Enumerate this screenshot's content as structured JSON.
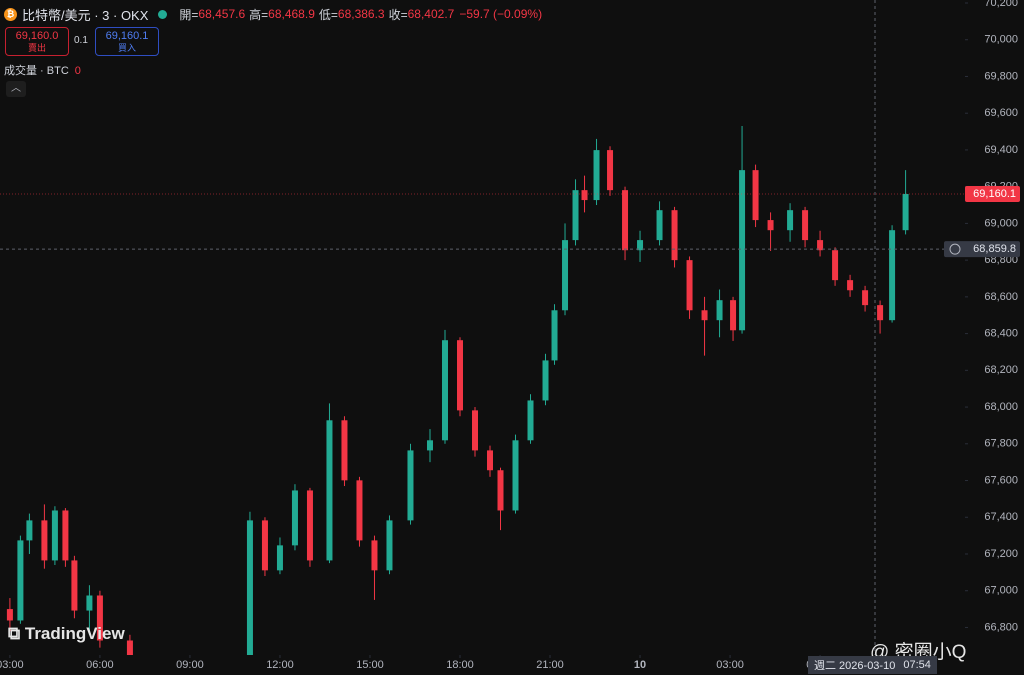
{
  "header": {
    "symbol": "比特幣/美元 · 3 · OKX",
    "ohlc": [
      {
        "label": "開=",
        "value": "68,457.6"
      },
      {
        "label": "高=",
        "value": "68,468.9"
      },
      {
        "label": "低=",
        "value": "68,386.3"
      },
      {
        "label": "收=",
        "value": "68,402.7"
      }
    ],
    "change": "−59.7 (−0.09%)"
  },
  "trade": {
    "sell": {
      "price": "69,160.0",
      "label": "賣出"
    },
    "quantity": "0.1",
    "buy": {
      "price": "69,160.1",
      "label": "買入"
    }
  },
  "volume": {
    "label": "成交量 · BTC",
    "value": "0"
  },
  "watermark": "TradingView",
  "credit": "@ 密圈小Q",
  "chart_data": {
    "type": "candlestick",
    "x": [
      3.0,
      3.35,
      3.65,
      4.15,
      4.5,
      4.85,
      5.15,
      5.65,
      6.0,
      7.0,
      8.5,
      10.0,
      11.0,
      11.5,
      12.0,
      12.5,
      13.0,
      13.65,
      14.15,
      14.65,
      15.15,
      15.65,
      16.35,
      17.0,
      17.5,
      18.0,
      18.5,
      19.0,
      19.35,
      19.85,
      20.35,
      20.85,
      21.15,
      21.5,
      21.85,
      22.15,
      22.55,
      23.0,
      23.5,
      24.0,
      24.65,
      25.15,
      25.65,
      26.15,
      26.65,
      27.1,
      27.4,
      27.85,
      28.35,
      29.0,
      29.5,
      30.0,
      30.5,
      31.0,
      31.5,
      32.0,
      32.4,
      32.85
    ],
    "open": [
      66900,
      66838,
      67274,
      67383,
      67165,
      67437,
      67165,
      66892,
      66974,
      66729,
      66500,
      66450,
      66600,
      67383,
      67111,
      67247,
      67546,
      67165,
      67928,
      67601,
      67274,
      67111,
      67383,
      67764,
      67819,
      68364,
      67982,
      67764,
      67656,
      67437,
      67819,
      68036,
      68254,
      68527,
      68909,
      69181,
      69127,
      69399,
      69181,
      68854,
      68909,
      69072,
      68800,
      68527,
      68473,
      68582,
      68418,
      69290,
      69018,
      68963,
      69072,
      68909,
      68854,
      68691,
      68636,
      68555,
      68473,
      68963
    ],
    "high": [
      66960,
      67300,
      67420,
      67470,
      67460,
      67450,
      67190,
      67030,
      67000,
      66760,
      66560,
      66640,
      67430,
      67400,
      67290,
      67580,
      67560,
      68020,
      67950,
      67620,
      67300,
      67410,
      67800,
      67880,
      68420,
      68380,
      68000,
      67790,
      67670,
      67850,
      68070,
      68290,
      68560,
      69000,
      69240,
      69260,
      69460,
      69420,
      69200,
      68960,
      69120,
      69090,
      68820,
      68600,
      68640,
      68600,
      69530,
      69320,
      69060,
      69110,
      69090,
      68960,
      68870,
      68720,
      68660,
      68580,
      68990,
      69290
    ],
    "low": [
      66780,
      66820,
      67200,
      67120,
      67140,
      67130,
      66850,
      66760,
      66690,
      66450,
      66400,
      66400,
      66580,
      67080,
      67090,
      67220,
      67130,
      67150,
      67570,
      67240,
      66950,
      67090,
      67360,
      67700,
      67800,
      67950,
      67730,
      67620,
      67330,
      67420,
      67800,
      68010,
      68230,
      68500,
      68880,
      69060,
      69100,
      69150,
      68800,
      68790,
      68880,
      68760,
      68480,
      68280,
      68380,
      68360,
      68400,
      68980,
      68850,
      68900,
      68870,
      68820,
      68660,
      68600,
      68520,
      68400,
      68460,
      68940
    ],
    "close": [
      66838,
      67274,
      67383,
      67165,
      67437,
      67165,
      66892,
      66974,
      66729,
      66500,
      66450,
      66600,
      67383,
      67111,
      67247,
      67546,
      67165,
      67928,
      67601,
      67274,
      67111,
      67383,
      67764,
      67819,
      68364,
      67982,
      67764,
      67656,
      67437,
      67819,
      68036,
      68254,
      68527,
      68909,
      69181,
      69127,
      69399,
      69181,
      68854,
      68909,
      69072,
      68800,
      68527,
      68473,
      68582,
      68418,
      69290,
      69018,
      68963,
      69072,
      68909,
      68854,
      68691,
      68636,
      68555,
      68473,
      68963,
      69160.1
    ],
    "up_color": "#22ab94",
    "down_color": "#f23645",
    "xlim": [
      2.67,
      34.83
    ],
    "ylim": [
      66650,
      70200
    ],
    "xticks": [
      {
        "value": 3,
        "label": "03:00"
      },
      {
        "value": 6,
        "label": "06:00"
      },
      {
        "value": 9,
        "label": "09:00"
      },
      {
        "value": 12,
        "label": "12:00"
      },
      {
        "value": 15,
        "label": "15:00"
      },
      {
        "value": 18,
        "label": "18:00"
      },
      {
        "value": 21,
        "label": "21:00"
      },
      {
        "value": 24,
        "label": "10"
      },
      {
        "value": 27,
        "label": "03:00"
      },
      {
        "value": 30,
        "label": "06:00"
      }
    ],
    "yticks": [
      {
        "value": 66800,
        "label": "66,800"
      },
      {
        "value": 67000,
        "label": "67,000"
      },
      {
        "value": 67200,
        "label": "67,200"
      },
      {
        "value": 67400,
        "label": "67,400"
      },
      {
        "value": 67600,
        "label": "67,600"
      },
      {
        "value": 67800,
        "label": "67,800"
      },
      {
        "value": 68000,
        "label": "68,000"
      },
      {
        "value": 68200,
        "label": "68,200"
      },
      {
        "value": 68400,
        "label": "68,400"
      },
      {
        "value": 68600,
        "label": "68,600"
      },
      {
        "value": 68800,
        "label": "68,800"
      },
      {
        "value": 69000,
        "label": "69,000"
      },
      {
        "value": 69200,
        "label": "69,200"
      },
      {
        "value": 69400,
        "label": "69,400"
      },
      {
        "value": 69600,
        "label": "69,600"
      },
      {
        "value": 69800,
        "label": "69,800"
      },
      {
        "value": 70000,
        "label": "70,000"
      },
      {
        "value": 70200,
        "label": "70,200"
      }
    ],
    "grid": false,
    "last_price": {
      "value": 69160.1,
      "label": "69,160.1"
    },
    "crosshair": {
      "value": 68859.8,
      "label": "68,859.8",
      "date": "週二 2026-03-10",
      "time": "07:54"
    }
  }
}
